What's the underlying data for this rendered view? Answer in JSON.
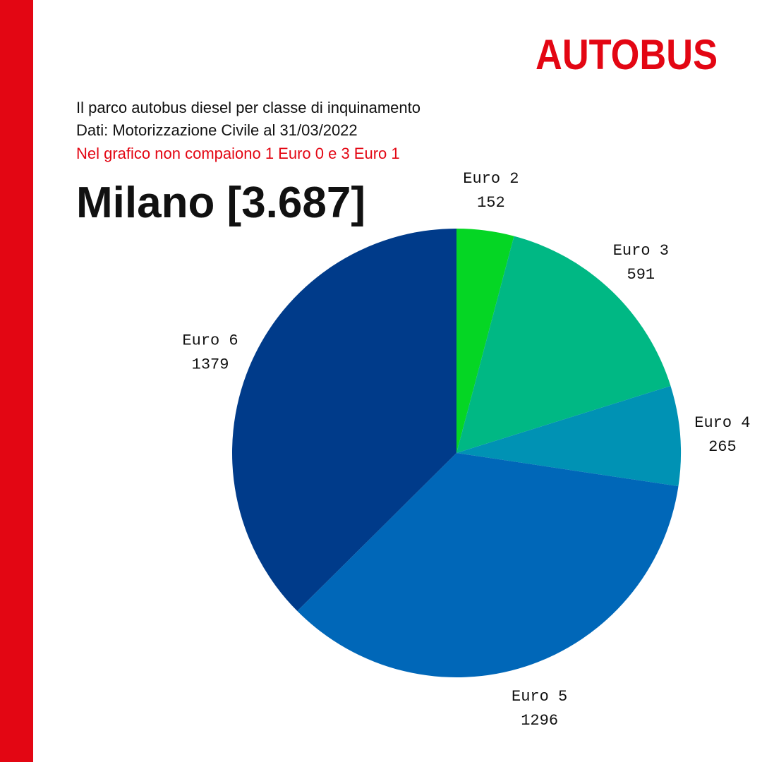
{
  "chart_data": {
    "type": "pie",
    "brand": "AUTOBUS",
    "subtitle": [
      "Il parco autobus diesel per classe di inquinamento",
      "Dati: Motorizzazione Civile al 31/03/2022"
    ],
    "note": "Nel grafico non compaiono 1 Euro 0 e 3 Euro 1",
    "title": "Milano [3.687]",
    "categories": [
      "Euro 2",
      "Euro 3",
      "Euro 4",
      "Euro 5",
      "Euro 6"
    ],
    "values": [
      152,
      591,
      265,
      1296,
      1379
    ],
    "colors": [
      "#05d624",
      "#00b884",
      "#0092b4",
      "#0067b8",
      "#003b8a"
    ]
  }
}
